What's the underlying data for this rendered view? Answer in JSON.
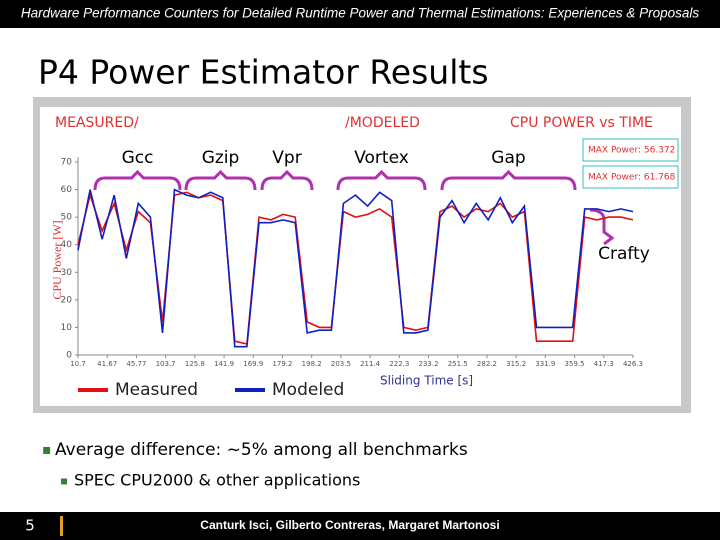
{
  "header": "Hardware Performance Counters for Detailed Runtime Power and Thermal Estimations: Experiences & Proposals",
  "title": "P4 Power Estimator Results",
  "chart_data": {
    "type": "line",
    "title_left": "MEASURED/",
    "title_mid": "/MODELED",
    "title_right": "CPU POWER vs TIME",
    "max_labels": [
      "MAX Power: 56.372",
      "MAX Power: 61.768"
    ],
    "y_label": "CPU Power [W]",
    "x_label": "Sliding Time [s]",
    "ylim": [
      0,
      70
    ],
    "yticks": [
      0,
      10,
      20,
      30,
      40,
      50,
      60,
      70
    ],
    "xtick_labels": [
      "10.7",
      "41.67",
      "45.77",
      "103.7",
      "125.8",
      "141.9",
      "169.9",
      "179.2",
      "198.2",
      "203.5",
      "211.4",
      "222.3",
      "233.2",
      "251.5",
      "282.2",
      "315.2",
      "331.9",
      "359.5",
      "417.3",
      "426.3"
    ],
    "benchmarks": [
      "Gcc",
      "Gzip",
      "Vpr",
      "Vortex",
      "Gap",
      "Crafty"
    ],
    "series": [
      {
        "name": "Measured",
        "color": "#e01010",
        "values": [
          40,
          58,
          45,
          55,
          38,
          52,
          48,
          12,
          58,
          59,
          57,
          58,
          56,
          5,
          4,
          50,
          49,
          51,
          50,
          12,
          10,
          10,
          52,
          50,
          51,
          53,
          50,
          10,
          9,
          10,
          52,
          54,
          50,
          53,
          52,
          55,
          50,
          52,
          5,
          5,
          5,
          5,
          50,
          49,
          50,
          50,
          49
        ]
      },
      {
        "name": "Modeled",
        "color": "#1020c0",
        "values": [
          38,
          60,
          42,
          58,
          35,
          55,
          50,
          8,
          60,
          58,
          57,
          59,
          57,
          3,
          3,
          48,
          48,
          49,
          48,
          8,
          9,
          9,
          55,
          58,
          54,
          59,
          56,
          8,
          8,
          9,
          50,
          56,
          48,
          55,
          49,
          57,
          48,
          54,
          10,
          10,
          10,
          10,
          53,
          53,
          52,
          53,
          52
        ]
      }
    ]
  },
  "bullets": [
    "Average difference: ~5% among all benchmarks"
  ],
  "sub_bullets": [
    "SPEC CPU2000 & other applications"
  ],
  "footer": {
    "page": "5",
    "authors": "Canturk Isci, Gilberto Contreras, Margaret Martonosi"
  }
}
